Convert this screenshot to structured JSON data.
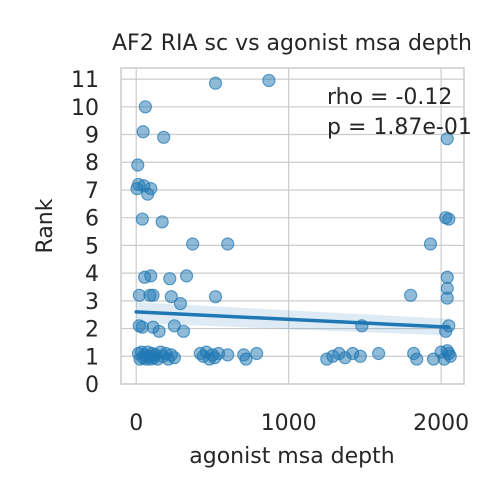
{
  "chart_data": {
    "type": "scatter",
    "title": "AF2 RIA sc vs agonist msa depth",
    "xlabel": "agonist msa depth",
    "ylabel": "Rank",
    "xlim": [
      -100,
      2150
    ],
    "ylim": [
      0,
      11.4
    ],
    "xticks": [
      0,
      1000,
      2000
    ],
    "xtick_labels": [
      "0",
      "1000",
      "2000"
    ],
    "yticks": [
      0,
      1,
      2,
      3,
      4,
      5,
      6,
      7,
      8,
      9,
      10,
      11
    ],
    "ytick_labels": [
      "0",
      "1",
      "2",
      "3",
      "4",
      "5",
      "6",
      "7",
      "8",
      "9",
      "10",
      "11"
    ],
    "grid": true,
    "annotations": [
      "rho = -0.12",
      "p = 1.87e-01"
    ],
    "colors": {
      "points": "#1f77b4",
      "line": "#1f77b4",
      "band": "#1f77b4"
    },
    "regression": {
      "x": [
        0,
        2050
      ],
      "y": [
        2.6,
        2.05
      ],
      "ci_upper": [
        2.95,
        2.35
      ],
      "ci_lower": [
        2.2,
        1.75
      ]
    },
    "series": [
      {
        "points": [
          {
            "x": 10,
            "y": 7.9
          },
          {
            "x": 15,
            "y": 7.2
          },
          {
            "x": 5,
            "y": 7.05
          },
          {
            "x": 50,
            "y": 7.15
          },
          {
            "x": 95,
            "y": 7.05
          },
          {
            "x": 75,
            "y": 6.85
          },
          {
            "x": 40,
            "y": 5.95
          },
          {
            "x": 170,
            "y": 5.85
          },
          {
            "x": 60,
            "y": 10.0
          },
          {
            "x": 45,
            "y": 9.1
          },
          {
            "x": 180,
            "y": 8.9
          },
          {
            "x": 520,
            "y": 10.85
          },
          {
            "x": 870,
            "y": 10.95
          },
          {
            "x": 370,
            "y": 5.05
          },
          {
            "x": 600,
            "y": 5.05
          },
          {
            "x": 20,
            "y": 3.2
          },
          {
            "x": 55,
            "y": 3.85
          },
          {
            "x": 95,
            "y": 3.9
          },
          {
            "x": 220,
            "y": 3.8
          },
          {
            "x": 330,
            "y": 3.9
          },
          {
            "x": 90,
            "y": 3.2
          },
          {
            "x": 110,
            "y": 3.2
          },
          {
            "x": 230,
            "y": 3.15
          },
          {
            "x": 290,
            "y": 2.9
          },
          {
            "x": 520,
            "y": 3.15
          },
          {
            "x": 20,
            "y": 2.1
          },
          {
            "x": 40,
            "y": 2.05
          },
          {
            "x": 110,
            "y": 2.05
          },
          {
            "x": 150,
            "y": 1.9
          },
          {
            "x": 250,
            "y": 2.1
          },
          {
            "x": 310,
            "y": 1.9
          },
          {
            "x": 15,
            "y": 1.1
          },
          {
            "x": 25,
            "y": 0.9
          },
          {
            "x": 35,
            "y": 1.15
          },
          {
            "x": 45,
            "y": 0.95
          },
          {
            "x": 55,
            "y": 1.05
          },
          {
            "x": 65,
            "y": 0.9
          },
          {
            "x": 75,
            "y": 1.15
          },
          {
            "x": 85,
            "y": 1.0
          },
          {
            "x": 95,
            "y": 0.9
          },
          {
            "x": 105,
            "y": 1.1
          },
          {
            "x": 115,
            "y": 0.95
          },
          {
            "x": 125,
            "y": 1.05
          },
          {
            "x": 140,
            "y": 0.9
          },
          {
            "x": 160,
            "y": 1.15
          },
          {
            "x": 175,
            "y": 1.0
          },
          {
            "x": 195,
            "y": 1.1
          },
          {
            "x": 210,
            "y": 0.9
          },
          {
            "x": 230,
            "y": 1.05
          },
          {
            "x": 250,
            "y": 0.95
          },
          {
            "x": 420,
            "y": 1.1
          },
          {
            "x": 440,
            "y": 1.0
          },
          {
            "x": 460,
            "y": 1.15
          },
          {
            "x": 480,
            "y": 0.9
          },
          {
            "x": 500,
            "y": 1.05
          },
          {
            "x": 515,
            "y": 0.95
          },
          {
            "x": 540,
            "y": 1.1
          },
          {
            "x": 600,
            "y": 1.05
          },
          {
            "x": 705,
            "y": 1.05
          },
          {
            "x": 720,
            "y": 0.9
          },
          {
            "x": 790,
            "y": 1.1
          },
          {
            "x": 1250,
            "y": 0.9
          },
          {
            "x": 1290,
            "y": 1.0
          },
          {
            "x": 1330,
            "y": 1.1
          },
          {
            "x": 1370,
            "y": 0.95
          },
          {
            "x": 1420,
            "y": 1.1
          },
          {
            "x": 1470,
            "y": 1.0
          },
          {
            "x": 1480,
            "y": 2.1
          },
          {
            "x": 1590,
            "y": 1.1
          },
          {
            "x": 1800,
            "y": 3.2
          },
          {
            "x": 1840,
            "y": 0.9
          },
          {
            "x": 1820,
            "y": 1.1
          },
          {
            "x": 1930,
            "y": 5.05
          },
          {
            "x": 1950,
            "y": 0.9
          },
          {
            "x": 2000,
            "y": 1.15
          },
          {
            "x": 2030,
            "y": 6.0
          },
          {
            "x": 2050,
            "y": 5.95
          },
          {
            "x": 2040,
            "y": 8.85
          },
          {
            "x": 2040,
            "y": 3.85
          },
          {
            "x": 2040,
            "y": 3.45
          },
          {
            "x": 2040,
            "y": 3.1
          },
          {
            "x": 2050,
            "y": 2.1
          },
          {
            "x": 2030,
            "y": 1.9
          },
          {
            "x": 2040,
            "y": 1.2
          },
          {
            "x": 2060,
            "y": 1.0
          },
          {
            "x": 2020,
            "y": 0.9
          },
          {
            "x": 2050,
            "y": 1.1
          }
        ]
      }
    ]
  }
}
